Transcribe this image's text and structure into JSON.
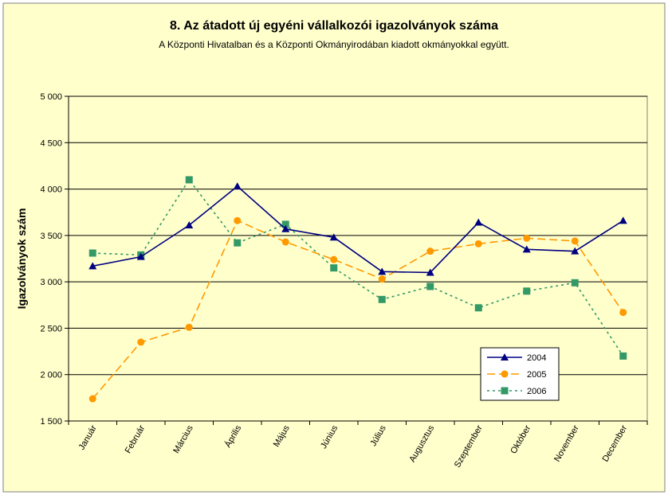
{
  "chart_data": {
    "type": "line",
    "title": "8. Az átadott új egyéni vállalkozói  igazolványok száma",
    "subtitle": "A Központi Hivatalban és a Központi Okmányirodában kiadott okmányokkal együtt.",
    "xlabel": "",
    "ylabel": "Igazolványok szám",
    "ylim": [
      1500,
      5000
    ],
    "yticks": [
      1500,
      2000,
      2500,
      3000,
      3500,
      4000,
      4500,
      5000
    ],
    "ytick_labels": [
      "1 500",
      "2 000",
      "2 500",
      "3 000",
      "3 500",
      "4 000",
      "4 500",
      "5 000"
    ],
    "grid": true,
    "legend_position": "bottom-right",
    "categories": [
      "Január",
      "Február",
      "Március",
      "Április",
      "Május",
      "Június",
      "Július",
      "Augusztus",
      "Szeptember",
      "Október",
      "November",
      "December"
    ],
    "series": [
      {
        "name": "2004",
        "color": "#000080",
        "marker": "triangle",
        "dash": "solid",
        "values": [
          3170,
          3270,
          3610,
          4030,
          3570,
          3480,
          3110,
          3100,
          3640,
          3350,
          3330,
          3660
        ]
      },
      {
        "name": "2005",
        "color": "#FF9900",
        "marker": "diamond",
        "dash": "dashed",
        "values": [
          1740,
          2350,
          2510,
          3660,
          3430,
          3240,
          3030,
          3330,
          3410,
          3470,
          3440,
          2670
        ]
      },
      {
        "name": "2006",
        "color": "#339966",
        "marker": "square",
        "dash": "dotted",
        "values": [
          3310,
          3290,
          4100,
          3420,
          3620,
          3150,
          2810,
          2950,
          2720,
          2900,
          2990,
          2200
        ]
      }
    ]
  },
  "colors": {
    "page_background": "#FFFFCC",
    "plot_background": "#FFFFCC",
    "border": "#808080",
    "gridline": "#000000"
  }
}
